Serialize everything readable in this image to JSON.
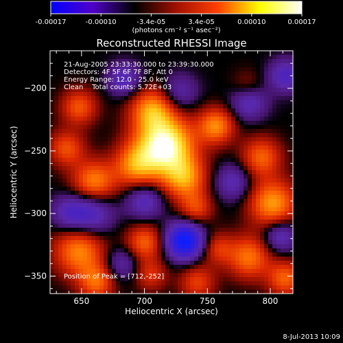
{
  "colorbar": {
    "ticks": [
      "-0.00017",
      "-0.00010",
      "-3.4e-05",
      "3.4e-05",
      "0.00010",
      "0.00017"
    ],
    "unit_label": "(photons cm⁻² s⁻¹ asec⁻²)",
    "colormap": [
      "#0000ff",
      "#5000c8",
      "#000000",
      "#a01000",
      "#ff4000",
      "#ffff00",
      "#ffffff"
    ]
  },
  "plot": {
    "title": "Reconstructed RHESSI Image",
    "xlabel": "Heliocentric X (arcsec)",
    "ylabel": "Heliocentric Y (arcsec)",
    "info_lines": [
      "21-Aug-2005 23:33:30.000 to 23:39:30.000",
      "Detectors: 4F 5F 6F 7F 8F, Att 0",
      "Energy Range: 12.0 - 25.0 keV",
      "Clean    Total counts: 5.72E+03"
    ],
    "peak_text": "Position of Peak = [712,-252]"
  },
  "footer": {
    "date": "8-Jul-2013 10:09"
  },
  "chart_data": {
    "type": "heatmap",
    "title": "Reconstructed RHESSI Image",
    "xlabel": "Heliocentric X (arcsec)",
    "ylabel": "Heliocentric Y (arcsec)",
    "xlim": [
      625,
      818
    ],
    "ylim": [
      -364,
      -170
    ],
    "x_ticks": [
      650,
      700,
      750,
      800
    ],
    "y_ticks": [
      -200,
      -250,
      -300,
      -350
    ],
    "colorbar_range": [
      -0.00017,
      0.00017
    ],
    "peak": [
      712,
      -252
    ],
    "blobs": [
      {
        "x": 716,
        "y": -246,
        "v": 1.0,
        "s": 16
      },
      {
        "x": 706,
        "y": -217,
        "v": 0.55,
        "s": 12
      },
      {
        "x": 693,
        "y": -262,
        "v": 0.5,
        "s": 12
      },
      {
        "x": 732,
        "y": -272,
        "v": 0.55,
        "s": 12
      },
      {
        "x": 660,
        "y": -275,
        "v": 0.55,
        "s": 12
      },
      {
        "x": 638,
        "y": -248,
        "v": 0.4,
        "s": 10
      },
      {
        "x": 648,
        "y": -215,
        "v": 0.42,
        "s": 10
      },
      {
        "x": 757,
        "y": -230,
        "v": 0.55,
        "s": 10
      },
      {
        "x": 793,
        "y": -255,
        "v": 0.45,
        "s": 11
      },
      {
        "x": 802,
        "y": -292,
        "v": 0.6,
        "s": 13
      },
      {
        "x": 783,
        "y": -335,
        "v": 0.5,
        "s": 12
      },
      {
        "x": 812,
        "y": -352,
        "v": 0.45,
        "s": 10
      },
      {
        "x": 648,
        "y": -330,
        "v": 0.55,
        "s": 14
      },
      {
        "x": 662,
        "y": -355,
        "v": 0.45,
        "s": 10
      },
      {
        "x": 700,
        "y": -323,
        "v": 0.45,
        "s": 10
      },
      {
        "x": 741,
        "y": -296,
        "v": 0.35,
        "s": 9
      },
      {
        "x": 758,
        "y": -328,
        "v": 0.3,
        "s": 9
      },
      {
        "x": 742,
        "y": -355,
        "v": 0.35,
        "s": 10
      },
      {
        "x": 705,
        "y": -349,
        "v": 0.3,
        "s": 9
      },
      {
        "x": 782,
        "y": -200,
        "v": 0.25,
        "s": 9
      },
      {
        "x": 812,
        "y": -190,
        "v": -0.45,
        "s": 9
      },
      {
        "x": 732,
        "y": -322,
        "v": -1.0,
        "s": 10
      },
      {
        "x": 658,
        "y": -300,
        "v": -0.45,
        "s": 12
      },
      {
        "x": 783,
        "y": -210,
        "v": -0.45,
        "s": 10
      },
      {
        "x": 684,
        "y": -193,
        "v": -0.4,
        "s": 9
      },
      {
        "x": 640,
        "y": -300,
        "v": -0.35,
        "s": 10
      },
      {
        "x": 700,
        "y": -290,
        "v": -0.4,
        "s": 10
      },
      {
        "x": 770,
        "y": -275,
        "v": -0.35,
        "s": 10
      },
      {
        "x": 728,
        "y": -203,
        "v": -0.3,
        "s": 10
      },
      {
        "x": 808,
        "y": -318,
        "v": -0.4,
        "s": 9
      },
      {
        "x": 682,
        "y": -340,
        "v": -0.3,
        "s": 9
      }
    ]
  }
}
